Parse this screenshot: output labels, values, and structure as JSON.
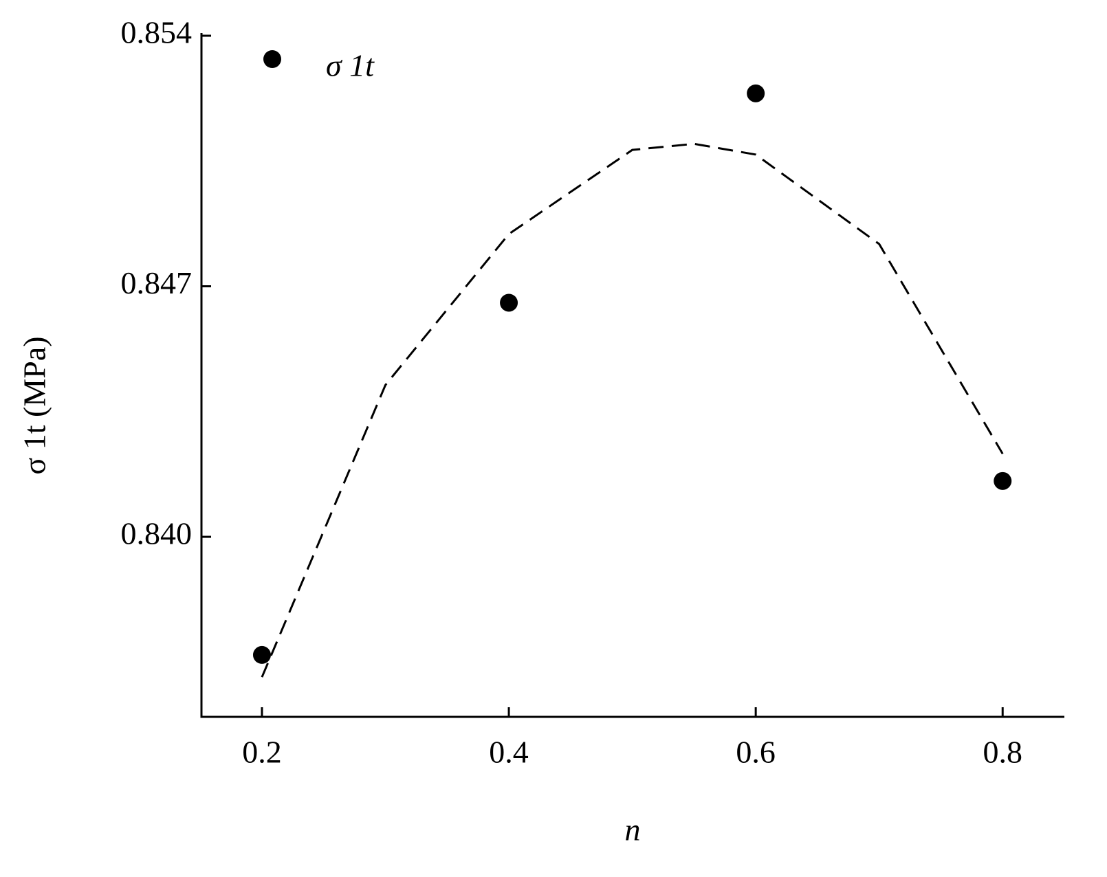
{
  "chart_data": {
    "type": "scatter",
    "x_label": "n",
    "y_label": "σ 1t (MPa)",
    "xlim": [
      0.151,
      0.85
    ],
    "ylim": [
      0.83497,
      0.854
    ],
    "xticks": [
      0.2,
      0.4,
      0.6,
      0.8
    ],
    "yticks": [
      {
        "value": 0.854,
        "label": "0.854"
      },
      {
        "value": 0.847,
        "label": "0.847"
      },
      {
        "value": 0.84,
        "label": "0.840"
      }
    ],
    "series": [
      {
        "name": "σ 1t",
        "color": "#000000",
        "x": [
          0.2,
          0.4,
          0.6,
          0.8
        ],
        "values": [
          0.8367,
          0.84654,
          0.85239,
          0.84156
        ]
      },
      {
        "color": "#000000",
        "dashed": true,
        "x": [
          0.2,
          0.3,
          0.4,
          0.5,
          0.55,
          0.6,
          0.7,
          0.8
        ],
        "values": [
          0.83608,
          0.84424,
          0.84846,
          0.85081,
          0.85098,
          0.85068,
          0.84818,
          0.84232
        ]
      }
    ]
  }
}
